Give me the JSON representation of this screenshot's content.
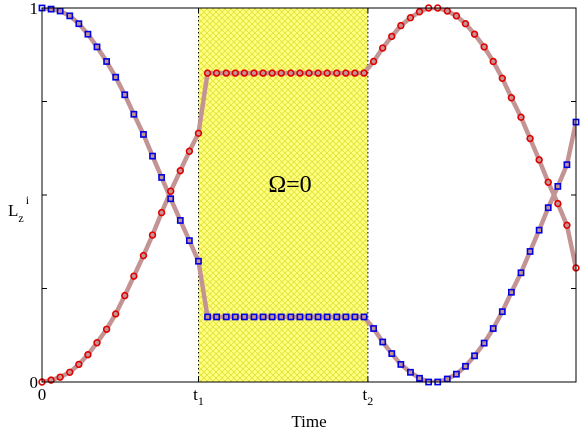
{
  "chart_data": {
    "type": "line",
    "annotation": "Ω=0",
    "xlabel": "Time",
    "ylabel": {
      "main": "L",
      "sub": "z",
      "sup": "i"
    },
    "xlim": [
      0,
      1
    ],
    "ylim": [
      0,
      1
    ],
    "x_ticks": [
      {
        "value": 0,
        "label": "0",
        "sub": ""
      },
      {
        "value": 0.2931,
        "label": "t",
        "sub": "1"
      },
      {
        "value": 0.6103,
        "label": "t",
        "sub": "2"
      }
    ],
    "y_ticks": [
      {
        "value": 0,
        "label": "0"
      },
      {
        "value": 1,
        "label": "1"
      }
    ],
    "shaded_region": {
      "x_start": 0.2931,
      "x_end": 0.6103,
      "color": "#ffff80"
    },
    "curve_color": "#c49494",
    "series": [
      {
        "marker": "circle",
        "color": "#e00000",
        "points": [
          [
            0.0,
            0.0
          ],
          [
            0.017,
            0.005
          ],
          [
            0.034,
            0.013
          ],
          [
            0.052,
            0.026
          ],
          [
            0.069,
            0.047
          ],
          [
            0.086,
            0.073
          ],
          [
            0.103,
            0.105
          ],
          [
            0.121,
            0.141
          ],
          [
            0.138,
            0.182
          ],
          [
            0.155,
            0.231
          ],
          [
            0.172,
            0.283
          ],
          [
            0.19,
            0.338
          ],
          [
            0.207,
            0.393
          ],
          [
            0.224,
            0.453
          ],
          [
            0.241,
            0.51
          ],
          [
            0.259,
            0.565
          ],
          [
            0.276,
            0.617
          ],
          [
            0.293,
            0.665
          ],
          [
            0.31,
            0.826
          ],
          [
            0.327,
            0.826
          ],
          [
            0.345,
            0.826
          ],
          [
            0.362,
            0.826
          ],
          [
            0.379,
            0.826
          ],
          [
            0.397,
            0.826
          ],
          [
            0.414,
            0.826
          ],
          [
            0.431,
            0.826
          ],
          [
            0.448,
            0.826
          ],
          [
            0.466,
            0.826
          ],
          [
            0.483,
            0.826
          ],
          [
            0.5,
            0.826
          ],
          [
            0.517,
            0.826
          ],
          [
            0.534,
            0.826
          ],
          [
            0.552,
            0.826
          ],
          [
            0.569,
            0.826
          ],
          [
            0.586,
            0.826
          ],
          [
            0.603,
            0.826
          ],
          [
            0.621,
            0.857
          ],
          [
            0.638,
            0.893
          ],
          [
            0.655,
            0.924
          ],
          [
            0.672,
            0.953
          ],
          [
            0.69,
            0.974
          ],
          [
            0.707,
            0.99
          ],
          [
            0.724,
            1.0
          ],
          [
            0.741,
            1.0
          ],
          [
            0.759,
            0.992
          ],
          [
            0.776,
            0.979
          ],
          [
            0.793,
            0.958
          ],
          [
            0.81,
            0.93
          ],
          [
            0.828,
            0.896
          ],
          [
            0.845,
            0.857
          ],
          [
            0.862,
            0.812
          ],
          [
            0.879,
            0.76
          ],
          [
            0.897,
            0.708
          ],
          [
            0.914,
            0.651
          ],
          [
            0.931,
            0.594
          ],
          [
            0.948,
            0.534
          ],
          [
            0.966,
            0.477
          ],
          [
            0.983,
            0.419
          ],
          [
            1.0,
            0.305
          ]
        ]
      },
      {
        "marker": "square",
        "color": "#0000e0",
        "points": [
          [
            0.0,
            1.0
          ],
          [
            0.017,
            0.997
          ],
          [
            0.034,
            0.992
          ],
          [
            0.052,
            0.979
          ],
          [
            0.069,
            0.958
          ],
          [
            0.086,
            0.93
          ],
          [
            0.103,
            0.896
          ],
          [
            0.121,
            0.857
          ],
          [
            0.138,
            0.815
          ],
          [
            0.155,
            0.768
          ],
          [
            0.172,
            0.716
          ],
          [
            0.19,
            0.662
          ],
          [
            0.207,
            0.604
          ],
          [
            0.224,
            0.547
          ],
          [
            0.241,
            0.49
          ],
          [
            0.259,
            0.432
          ],
          [
            0.276,
            0.378
          ],
          [
            0.293,
            0.323
          ],
          [
            0.31,
            0.174
          ],
          [
            0.327,
            0.174
          ],
          [
            0.345,
            0.174
          ],
          [
            0.362,
            0.174
          ],
          [
            0.379,
            0.174
          ],
          [
            0.397,
            0.174
          ],
          [
            0.414,
            0.174
          ],
          [
            0.431,
            0.174
          ],
          [
            0.448,
            0.174
          ],
          [
            0.466,
            0.174
          ],
          [
            0.483,
            0.174
          ],
          [
            0.5,
            0.174
          ],
          [
            0.517,
            0.174
          ],
          [
            0.534,
            0.174
          ],
          [
            0.552,
            0.174
          ],
          [
            0.569,
            0.174
          ],
          [
            0.586,
            0.174
          ],
          [
            0.603,
            0.174
          ],
          [
            0.621,
            0.143
          ],
          [
            0.638,
            0.107
          ],
          [
            0.655,
            0.076
          ],
          [
            0.672,
            0.047
          ],
          [
            0.69,
            0.026
          ],
          [
            0.707,
            0.01
          ],
          [
            0.724,
            0.0
          ],
          [
            0.741,
            0.0
          ],
          [
            0.759,
            0.008
          ],
          [
            0.776,
            0.021
          ],
          [
            0.793,
            0.042
          ],
          [
            0.81,
            0.07
          ],
          [
            0.828,
            0.104
          ],
          [
            0.845,
            0.143
          ],
          [
            0.862,
            0.188
          ],
          [
            0.879,
            0.24
          ],
          [
            0.897,
            0.292
          ],
          [
            0.914,
            0.349
          ],
          [
            0.931,
            0.406
          ],
          [
            0.948,
            0.466
          ],
          [
            0.966,
            0.523
          ],
          [
            0.983,
            0.581
          ],
          [
            1.0,
            0.695
          ]
        ]
      }
    ]
  }
}
